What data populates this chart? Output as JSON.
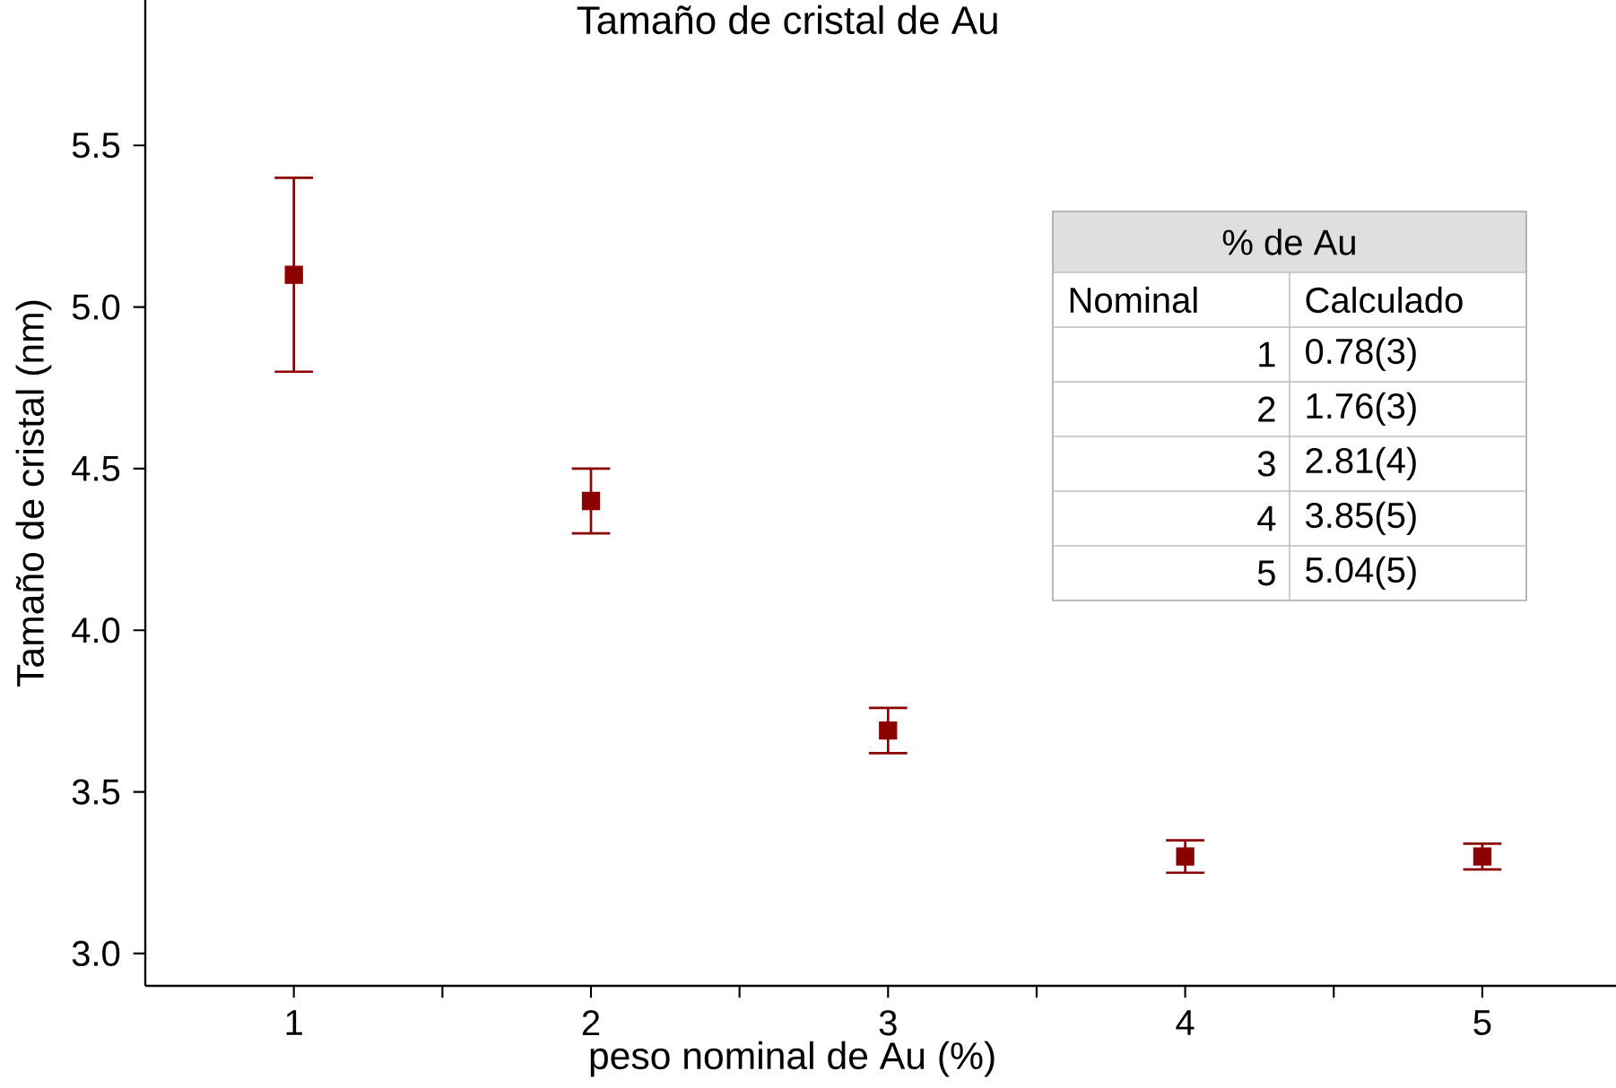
{
  "chart_data": {
    "type": "scatter",
    "title": "Tamaño de cristal de Au",
    "xlabel": "peso nominal de Au (%)",
    "ylabel": "Tamaño de cristal (nm)",
    "x": [
      1,
      2,
      3,
      4,
      5
    ],
    "values": [
      5.1,
      4.4,
      3.69,
      3.3,
      3.3
    ],
    "errors": [
      0.3,
      0.1,
      0.07,
      0.05,
      0.04
    ],
    "color": "#8b0000",
    "marker": "square",
    "xlim": [
      0.5,
      5.45
    ],
    "ylim": [
      2.9,
      5.95
    ],
    "xticks": [
      1,
      {
        "value": 1.5,
        "label": null
      },
      2,
      {
        "value": 2.5,
        "label": null
      },
      3,
      {
        "value": 3.5,
        "label": null
      },
      4,
      {
        "value": 4.5,
        "label": null
      },
      5
    ],
    "yticks": [
      {
        "value": 3.0,
        "label": "3.0"
      },
      3.5,
      {
        "value": 4.0,
        "label": "4.0"
      },
      4.5,
      {
        "value": 5.0,
        "label": "5.0"
      },
      5.5
    ],
    "annotations": [
      "% de Au",
      "Nominal",
      "Calculado",
      "1",
      "0.78(3)",
      "2",
      "1.76(3)",
      "3",
      "2.81(4)",
      "4",
      "3.85(5)",
      "5",
      "5.04(5)"
    ]
  }
}
